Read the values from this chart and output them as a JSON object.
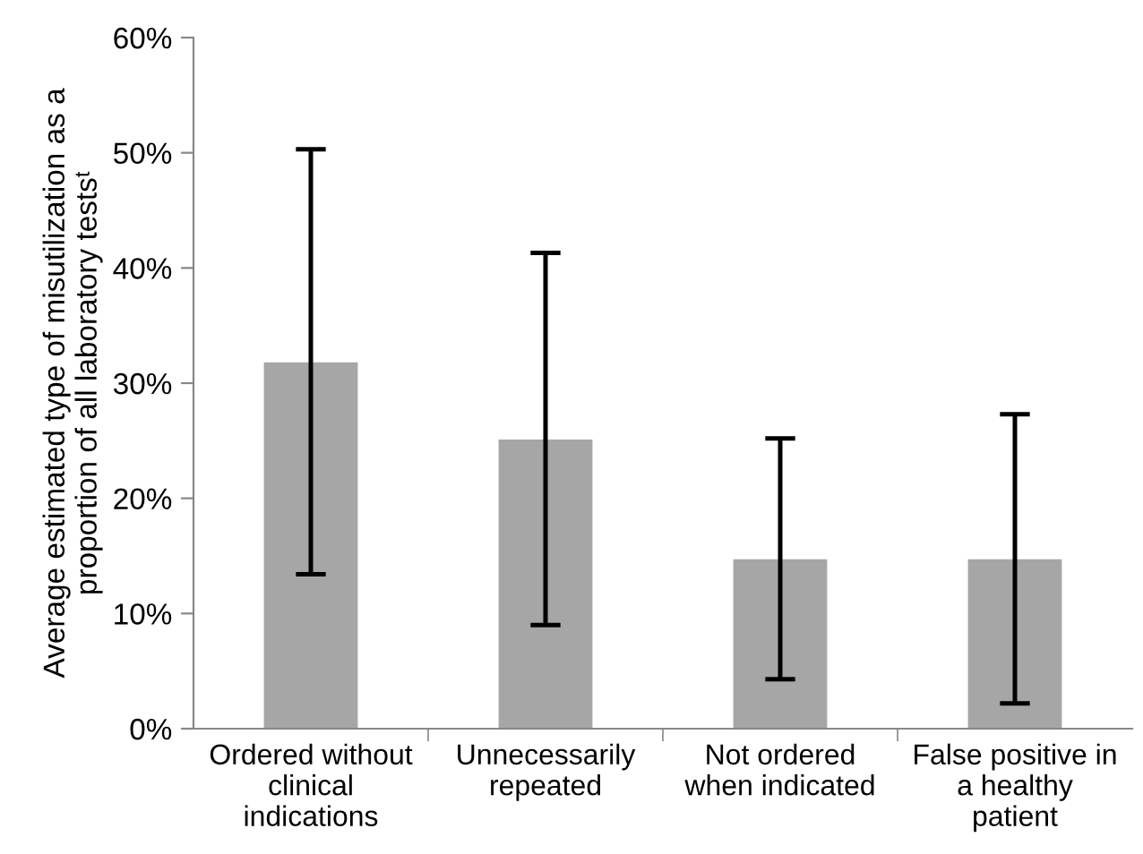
{
  "chart_data": {
    "type": "bar",
    "ylabel": "Average estimated type of misutilization as a\nproportion of all laboratory testsᵗ",
    "categories": [
      "Ordered without\nclinical\nindications",
      "Unnecessarily\nrepeated",
      "Not ordered\nwhen indicated",
      "False positive in\na healthy\npatient"
    ],
    "values": [
      31.8,
      25.1,
      14.7,
      14.7
    ],
    "errors": [
      [
        13.4,
        50.3
      ],
      [
        9.0,
        41.3
      ],
      [
        4.3,
        25.2
      ],
      [
        2.2,
        27.3
      ]
    ],
    "color": "#a6a6a6",
    "ylim": [
      0,
      60
    ],
    "yticks": [
      {
        "value": 0,
        "label": "0%"
      },
      {
        "value": 10,
        "label": "10%"
      },
      {
        "value": 20,
        "label": "20%"
      },
      {
        "value": 30,
        "label": "30%"
      },
      {
        "value": 40,
        "label": "40%"
      },
      {
        "value": 50,
        "label": "50%"
      },
      {
        "value": 60,
        "label": "60%"
      }
    ],
    "grid": false,
    "legend": false
  }
}
